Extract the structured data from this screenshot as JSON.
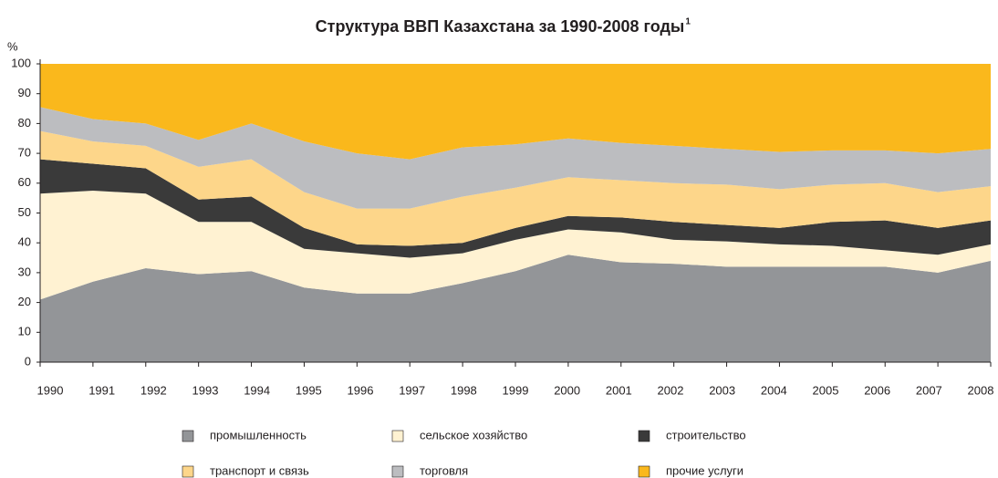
{
  "chart_data": {
    "type": "stacked_area",
    "title": "Структура ВВП Казахстана за 1990-2008 годы",
    "title_footnote_mark": "1",
    "y_label": "%",
    "categories": [
      "1990",
      "1991",
      "1992",
      "1993",
      "1994",
      "1995",
      "1996",
      "1997",
      "1998",
      "1999",
      "2000",
      "2001",
      "2002",
      "2003",
      "2004",
      "2005",
      "2006",
      "2007",
      "2008"
    ],
    "ylim": [
      0,
      100
    ],
    "yticks": [
      0,
      10,
      20,
      30,
      40,
      50,
      60,
      70,
      80,
      90,
      100
    ],
    "series": [
      {
        "name": "промышленность",
        "color": "#939598",
        "values": [
          21,
          27,
          31.5,
          29.5,
          30.5,
          25,
          23,
          23,
          26.5,
          30.5,
          36,
          33.5,
          33,
          32,
          32,
          32,
          32,
          30,
          34
        ]
      },
      {
        "name": "сельское хозяйство",
        "color": "#fff2d2",
        "values": [
          35.5,
          30.5,
          25,
          17.5,
          16.5,
          13,
          13.5,
          12,
          10,
          10.5,
          8.5,
          10,
          8,
          8.5,
          7.5,
          7,
          5.5,
          6,
          5.5
        ]
      },
      {
        "name": "строительство",
        "color": "#3a3a3a",
        "values": [
          11.5,
          9,
          8.5,
          7.5,
          8.5,
          7,
          3,
          4,
          3.5,
          4,
          4.5,
          5,
          6,
          5.5,
          5.5,
          8,
          10,
          9,
          8
        ]
      },
      {
        "name": "транспорт и связь",
        "color": "#fdd68a",
        "values": [
          9.5,
          7.5,
          7.5,
          11,
          12.5,
          12,
          12,
          12.5,
          15.5,
          13.5,
          13,
          12.5,
          13,
          13.5,
          13,
          12.5,
          12.5,
          12,
          11.5
        ]
      },
      {
        "name": "торговля",
        "color": "#bcbdc0",
        "values": [
          8,
          7.5,
          7.5,
          9,
          12,
          17,
          18.5,
          16.5,
          16.5,
          14.5,
          13,
          12.5,
          12.5,
          12,
          12.5,
          11.5,
          11,
          13,
          12.5
        ]
      },
      {
        "name": "прочие услуги",
        "color": "#fab81c",
        "values": [
          14.5,
          18.5,
          20,
          25.5,
          20,
          26,
          30,
          32,
          28,
          27,
          25,
          26.5,
          27.5,
          28.5,
          29.5,
          29,
          29,
          30,
          28.5
        ]
      }
    ]
  }
}
